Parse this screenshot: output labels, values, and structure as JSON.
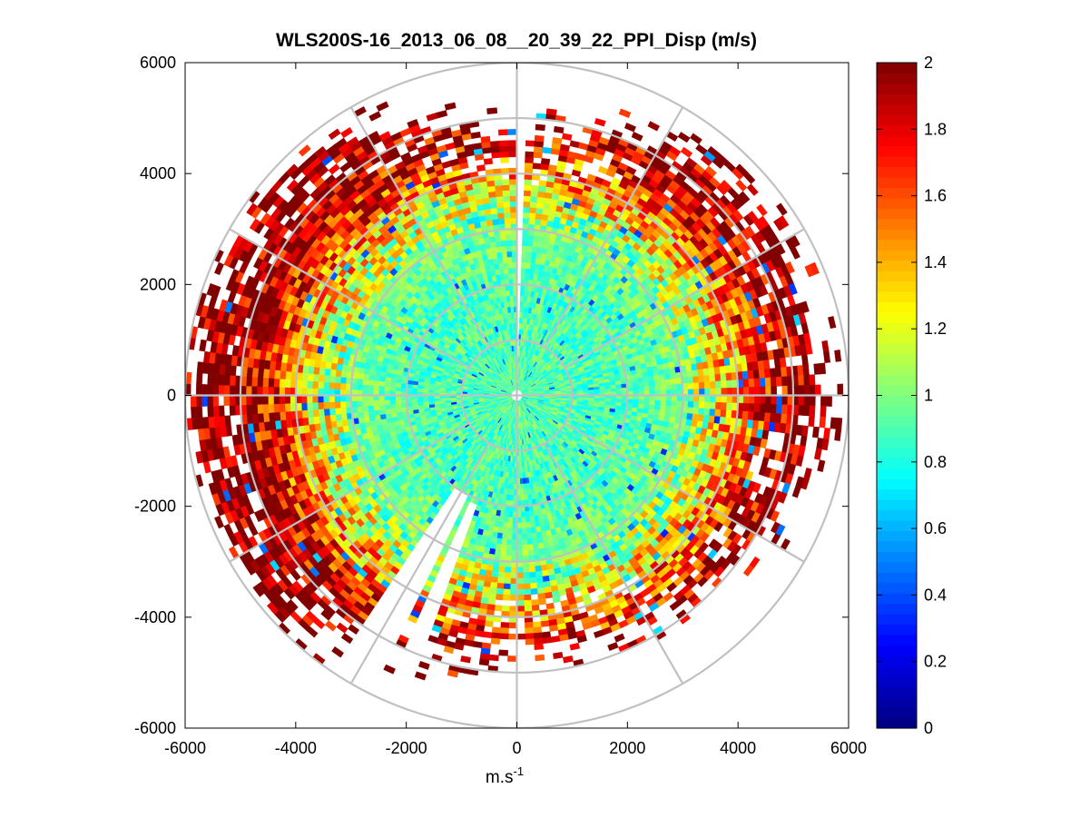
{
  "chart_data": {
    "type": "heatmap",
    "subtype": "polar-ppi-scan",
    "title": "WLS200S-16_2013_06_08__20_39_22_PPI_Disp (m/s)",
    "xlabel": "m.s",
    "xlabel_superscript": "-1",
    "ylabel": "",
    "xlim": [
      -6000,
      6000
    ],
    "ylim": [
      -6000,
      6000
    ],
    "x_ticks": [
      -6000,
      -4000,
      -2000,
      0,
      2000,
      4000,
      6000
    ],
    "y_ticks": [
      -6000,
      -4000,
      -2000,
      0,
      2000,
      4000,
      6000
    ],
    "x_tick_labels": [
      "-6000",
      "-4000",
      "-2000",
      "0",
      "2000",
      "4000",
      "6000"
    ],
    "y_tick_labels": [
      "-6000",
      "-4000",
      "-2000",
      "0",
      "2000",
      "4000",
      "6000"
    ],
    "polar_grid_radii": [
      1000,
      2000,
      3000,
      4000,
      5000,
      6000
    ],
    "polar_spoke_angles_deg": [
      0,
      30,
      60,
      90,
      120,
      150,
      180,
      210,
      240,
      270,
      300,
      330
    ],
    "colorbar": {
      "colormap": "jet",
      "range": [
        0,
        2
      ],
      "ticks": [
        0,
        0.2,
        0.4,
        0.6,
        0.8,
        1,
        1.2,
        1.4,
        1.6,
        1.8,
        2
      ],
      "tick_labels": [
        "0",
        "0.2",
        "0.4",
        "0.6",
        "0.8",
        "1",
        "1.2",
        "1.4",
        "1.6",
        "1.8",
        "2"
      ]
    },
    "data_description": {
      "max_range_m": 6000,
      "range_gate_m": 100,
      "azimuth_step_deg": 2,
      "profile_radius_m": [
        0,
        1000,
        2000,
        3000,
        3500,
        4000,
        4500,
        5000,
        5500,
        6000
      ],
      "profile_value": [
        0.95,
        0.9,
        0.9,
        1.0,
        1.2,
        1.5,
        1.8,
        1.95,
        2.0,
        2.0
      ],
      "coverage_radius_by_sector": [
        {
          "azimuth_deg": 0,
          "max_range_m": 4500
        },
        {
          "azimuth_deg": 45,
          "max_range_m": 5400
        },
        {
          "azimuth_deg": 90,
          "max_range_m": 5400
        },
        {
          "azimuth_deg": 135,
          "max_range_m": 4800
        },
        {
          "azimuth_deg": 180,
          "max_range_m": 4300
        },
        {
          "azimuth_deg": 225,
          "max_range_m": 5700
        },
        {
          "azimuth_deg": 270,
          "max_range_m": 5800
        },
        {
          "azimuth_deg": 315,
          "max_range_m": 5800
        }
      ],
      "gaps": [
        {
          "from_azimuth_deg": 0,
          "to_azimuth_deg": 1,
          "note": "blank wedge at north"
        },
        {
          "from_azimuth_deg": 200,
          "to_azimuth_deg": 204,
          "note": "blocked wedge, data only within ~2000 m"
        },
        {
          "from_azimuth_deg": 206,
          "to_azimuth_deg": 214,
          "note": "blocked wedge, data only within ~1900 m"
        }
      ]
    }
  }
}
